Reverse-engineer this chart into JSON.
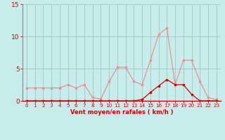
{
  "x": [
    0,
    1,
    2,
    3,
    4,
    5,
    6,
    7,
    8,
    9,
    10,
    11,
    12,
    13,
    14,
    15,
    16,
    17,
    18,
    19,
    20,
    21,
    22,
    23
  ],
  "rafales": [
    2.0,
    2.0,
    2.0,
    2.0,
    2.0,
    2.5,
    2.0,
    2.5,
    0.5,
    0.3,
    3.0,
    5.2,
    5.2,
    3.0,
    2.5,
    6.3,
    10.3,
    11.3,
    2.5,
    6.3,
    6.3,
    3.0,
    0.5,
    0.2
  ],
  "moyen": [
    0,
    0,
    0,
    0,
    0,
    0,
    0,
    0,
    0,
    0,
    0,
    0,
    0,
    0,
    0.2,
    1.3,
    2.3,
    3.3,
    2.5,
    2.5,
    1.0,
    0,
    0,
    0
  ],
  "rafales_color": "#e89090",
  "moyen_color": "#cc0000",
  "bg_color": "#c8ecec",
  "grid_color": "#a8c8c8",
  "axis_color": "#cc0000",
  "tick_color": "#cc0000",
  "xlabel": "Vent moyen/en rafales ( km/h )",
  "ylim": [
    0,
    15
  ],
  "xlim": [
    -0.5,
    23.5
  ],
  "yticks": [
    0,
    5,
    10,
    15
  ],
  "xticks": [
    0,
    1,
    2,
    3,
    4,
    5,
    6,
    7,
    8,
    9,
    10,
    11,
    12,
    13,
    14,
    15,
    16,
    17,
    18,
    19,
    20,
    21,
    22,
    23
  ]
}
